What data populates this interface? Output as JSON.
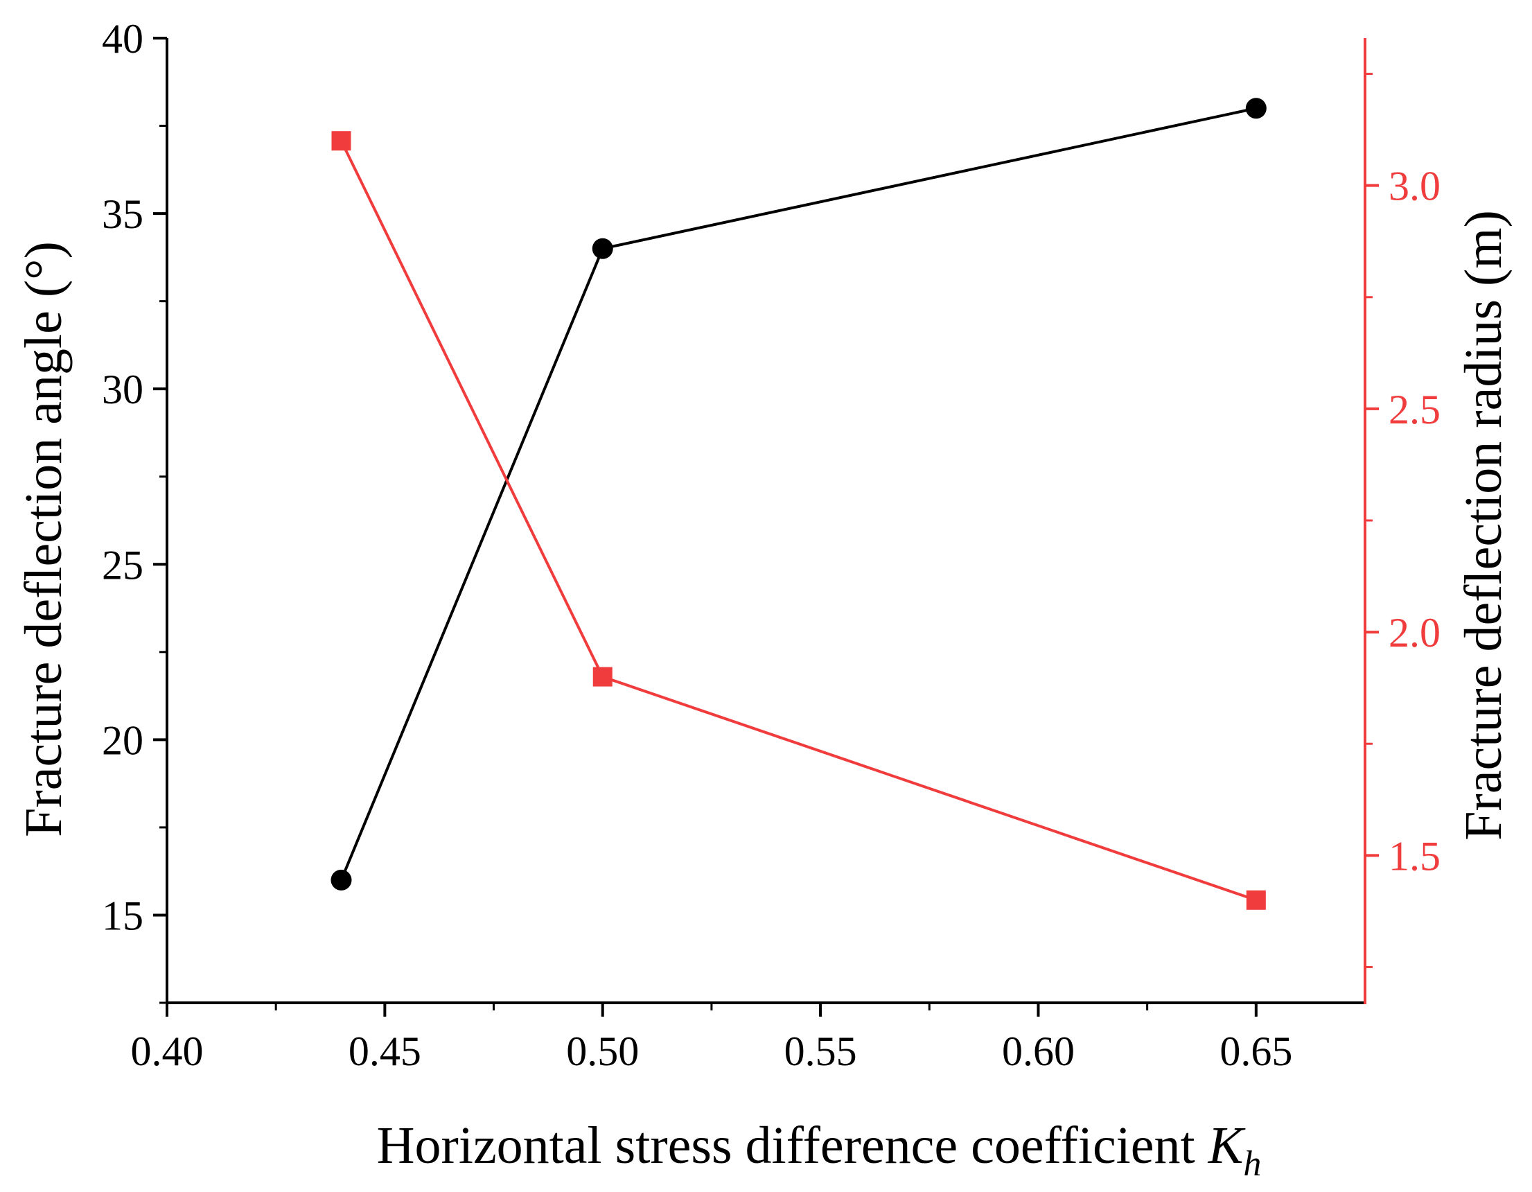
{
  "chart_data": {
    "type": "line",
    "title": "",
    "xlabel": "Horizontal stress difference coefficient ",
    "xlabel_symbol": "K",
    "xlabel_subscript": "h",
    "ylabel_left": "Fracture deflection angle (°)",
    "ylabel_right": "Fracture deflection radius (m)",
    "xlim": [
      0.4,
      0.675
    ],
    "ylim_left": [
      12.5,
      40
    ],
    "ylim_right": [
      1.17,
      3.33
    ],
    "x_ticks": [
      0.4,
      0.45,
      0.5,
      0.55,
      0.6,
      0.65
    ],
    "x_tick_labels": [
      "0.40",
      "0.45",
      "0.50",
      "0.55",
      "0.60",
      "0.65"
    ],
    "x_minor_ticks": [
      0.425,
      0.475,
      0.525,
      0.575,
      0.625
    ],
    "y_left_ticks": [
      15,
      20,
      25,
      30,
      35,
      40
    ],
    "y_left_tick_labels": [
      "15",
      "20",
      "25",
      "30",
      "35",
      "40"
    ],
    "y_left_minor_ticks": [
      12.5,
      17.5,
      22.5,
      27.5,
      32.5,
      37.5
    ],
    "y_right_ticks": [
      1.5,
      2.0,
      2.5,
      3.0
    ],
    "y_right_tick_labels": [
      "1.5",
      "2.0",
      "2.5",
      "3.0"
    ],
    "y_right_minor_ticks": [
      1.25,
      1.75,
      2.25,
      2.75,
      3.25
    ],
    "series": [
      {
        "name": "Fracture deflection angle",
        "axis": "left",
        "marker": "circle",
        "color": "#000000",
        "x": [
          0.44,
          0.5,
          0.65
        ],
        "values": [
          16,
          34,
          38
        ]
      },
      {
        "name": "Fracture deflection radius",
        "axis": "right",
        "marker": "square",
        "color": "#f03c3c",
        "x": [
          0.44,
          0.5,
          0.65
        ],
        "values": [
          3.1,
          1.9,
          1.4
        ]
      }
    ],
    "colors": {
      "left_axis": "#000000",
      "right_axis": "#f03c3c"
    },
    "grid": false,
    "legend": "none"
  }
}
